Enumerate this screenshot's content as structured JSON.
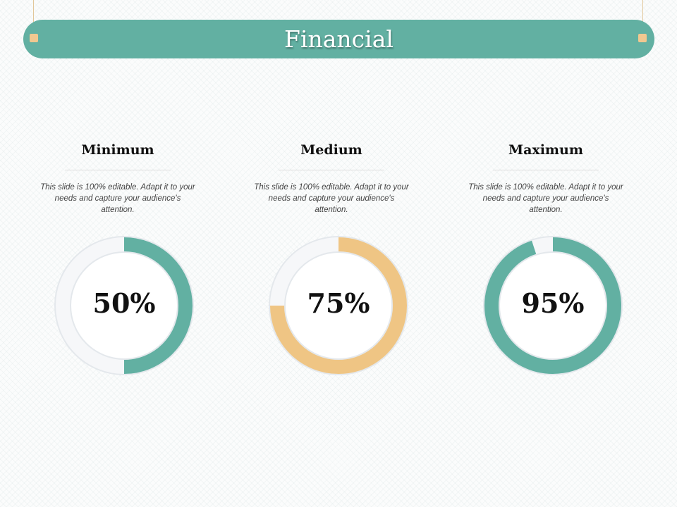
{
  "header": {
    "title": "Financial"
  },
  "columns": [
    {
      "heading": "Minimum",
      "description": "This slide is 100% editable. Adapt it to your needs and capture your audience's attention.",
      "value_label": "50%",
      "fraction": 0.5,
      "color": "#62b0a2"
    },
    {
      "heading": "Medium",
      "description": "This slide is 100% editable. Adapt it to your needs and capture your audience's attention.",
      "value_label": "75%",
      "fraction": 0.75,
      "color": "#efc584"
    },
    {
      "heading": "Maximum",
      "description": "This slide is 100% editable. Adapt it to your needs and capture your audience's attention.",
      "value_label": "95%",
      "fraction": 0.95,
      "color": "#62b0a2"
    }
  ],
  "colors": {
    "banner": "#62b0a2",
    "accent": "#f0c890",
    "track": "#eef0f3"
  }
}
